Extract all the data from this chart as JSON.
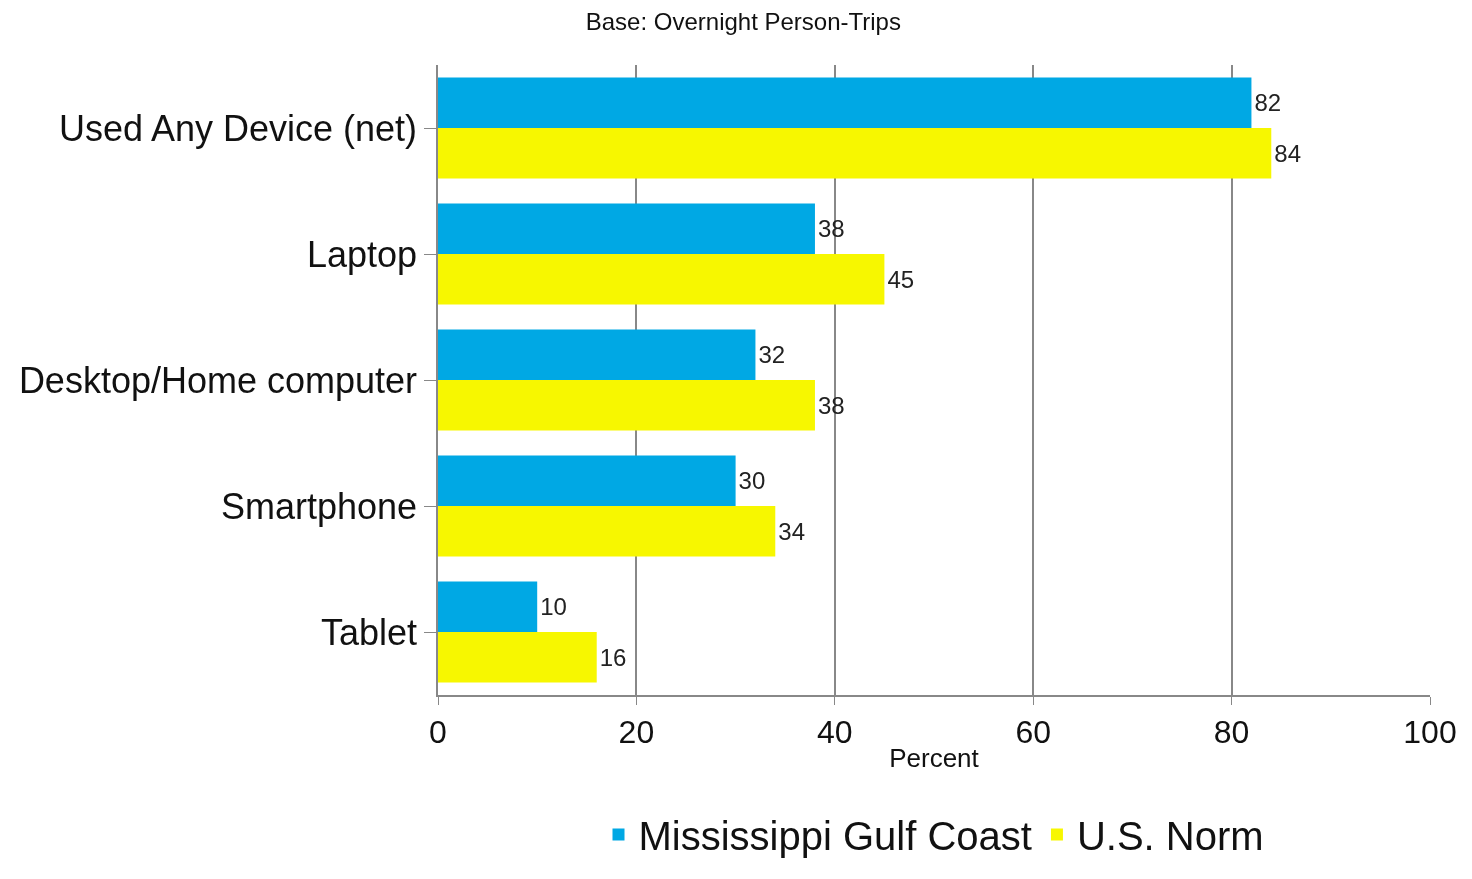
{
  "chart_data": {
    "type": "bar",
    "orientation": "horizontal",
    "subtitle": "Base: Overnight Person-Trips",
    "xlabel": "Percent",
    "categories": [
      "Used Any Device (net)",
      "Laptop",
      "Desktop/Home computer",
      "Smartphone",
      "Tablet"
    ],
    "series": [
      {
        "name": "Mississippi Gulf Coast",
        "color": "#00a8e4",
        "values": [
          82,
          38,
          32,
          30,
          10
        ]
      },
      {
        "name": "U.S. Norm",
        "color": "#f7f700",
        "values": [
          84,
          45,
          38,
          34,
          16
        ]
      }
    ],
    "xlim": [
      0,
      100
    ],
    "xticks": [
      0,
      20,
      40,
      60,
      80,
      100
    ],
    "grid": "x",
    "legend": "bottom",
    "data_labels": true
  }
}
